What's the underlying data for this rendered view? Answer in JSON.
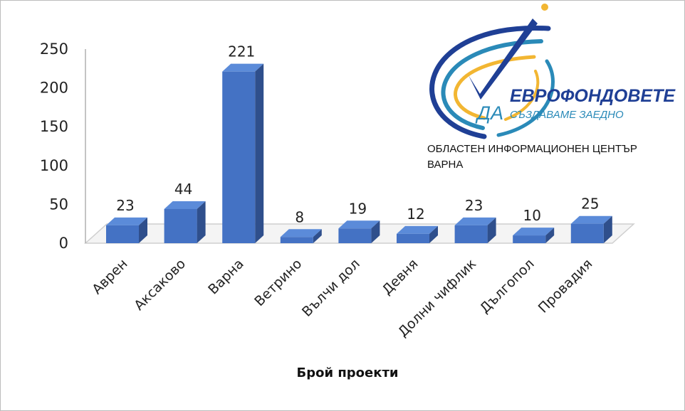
{
  "chart_data": {
    "type": "bar",
    "style": "3d-column",
    "categories": [
      "Аврен",
      "Аксаково",
      "Варна",
      "Ветрино",
      "Вълчи дол",
      "Девня",
      "Долни чифлик",
      "Дългопол",
      "Провадия"
    ],
    "values": [
      23,
      44,
      221,
      8,
      19,
      12,
      23,
      10,
      25
    ],
    "xlabel": "Брой проекти",
    "ylabel": "",
    "ylim": [
      0,
      250
    ],
    "yticks": [
      0,
      50,
      100,
      150,
      200,
      250
    ],
    "grid": false,
    "legend": "none",
    "bar_color": "#4472c4"
  },
  "logo": {
    "brand": "ЕВРОФОНДОВЕТЕ",
    "tagline_prefix": "ДА",
    "tagline": "СЪЗДАВАМЕ ЗАЕДНО",
    "colors": {
      "navy": "#1f3f95",
      "teal": "#2a8ab8",
      "gold": "#f2b632"
    }
  },
  "info_center": {
    "line1": "ОБЛАСТЕН ИНФОРМАЦИОНЕН ЦЕНТЪР",
    "line2": "ВАРНА"
  }
}
